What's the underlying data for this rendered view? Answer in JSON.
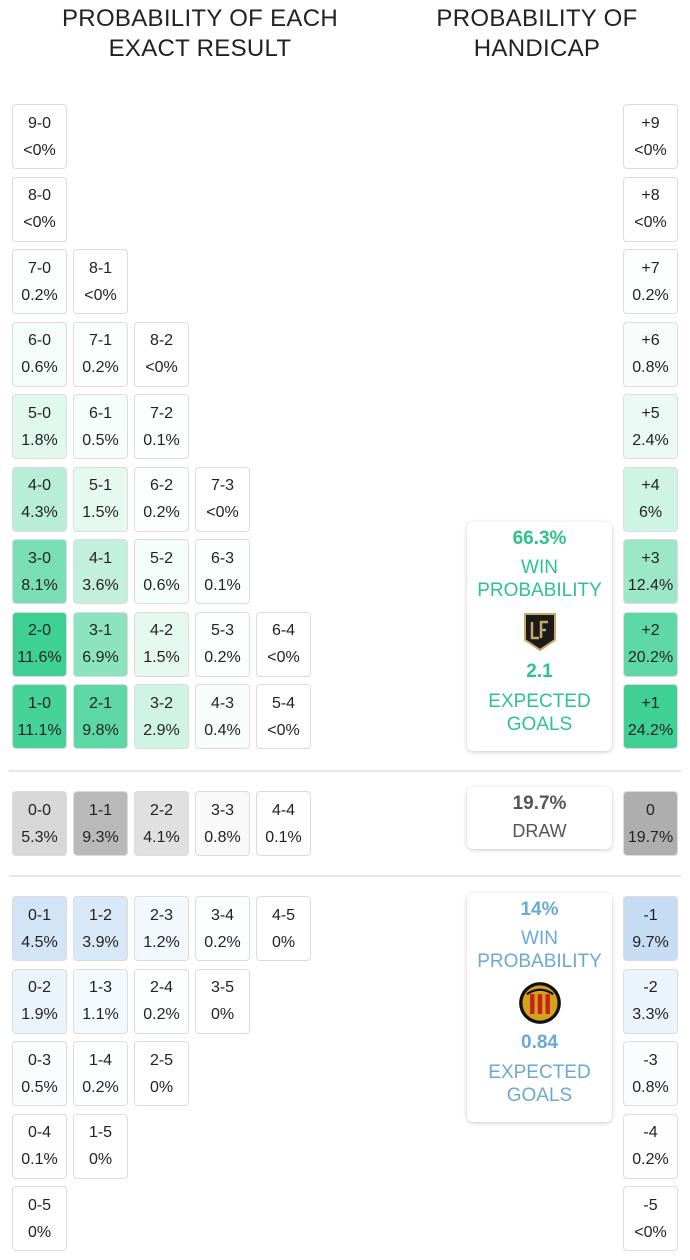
{
  "chart_data": [
    {
      "type": "table",
      "title": "PROBABILITY OF EACH EXACT RESULT",
      "home_wins": [
        [
          {
            "score": "9-0",
            "value": "<0%"
          }
        ],
        [
          {
            "score": "8-0",
            "value": "<0%"
          }
        ],
        [
          {
            "score": "7-0",
            "value": "0.2%"
          },
          {
            "score": "8-1",
            "value": "<0%"
          }
        ],
        [
          {
            "score": "6-0",
            "value": "0.6%"
          },
          {
            "score": "7-1",
            "value": "0.2%"
          },
          {
            "score": "8-2",
            "value": "<0%"
          }
        ],
        [
          {
            "score": "5-0",
            "value": "1.8%"
          },
          {
            "score": "6-1",
            "value": "0.5%"
          },
          {
            "score": "7-2",
            "value": "0.1%"
          }
        ],
        [
          {
            "score": "4-0",
            "value": "4.3%"
          },
          {
            "score": "5-1",
            "value": "1.5%"
          },
          {
            "score": "6-2",
            "value": "0.2%"
          },
          {
            "score": "7-3",
            "value": "<0%"
          }
        ],
        [
          {
            "score": "3-0",
            "value": "8.1%"
          },
          {
            "score": "4-1",
            "value": "3.6%"
          },
          {
            "score": "5-2",
            "value": "0.6%"
          },
          {
            "score": "6-3",
            "value": "0.1%"
          }
        ],
        [
          {
            "score": "2-0",
            "value": "11.6%"
          },
          {
            "score": "3-1",
            "value": "6.9%"
          },
          {
            "score": "4-2",
            "value": "1.5%"
          },
          {
            "score": "5-3",
            "value": "0.2%"
          },
          {
            "score": "6-4",
            "value": "<0%"
          }
        ],
        [
          {
            "score": "1-0",
            "value": "11.1%"
          },
          {
            "score": "2-1",
            "value": "9.8%"
          },
          {
            "score": "3-2",
            "value": "2.9%"
          },
          {
            "score": "4-3",
            "value": "0.4%"
          },
          {
            "score": "5-4",
            "value": "<0%"
          }
        ]
      ],
      "draws": [
        {
          "score": "0-0",
          "value": "5.3%"
        },
        {
          "score": "1-1",
          "value": "9.3%"
        },
        {
          "score": "2-2",
          "value": "4.1%"
        },
        {
          "score": "3-3",
          "value": "0.8%"
        },
        {
          "score": "4-4",
          "value": "0.1%"
        }
      ],
      "away_wins": [
        [
          {
            "score": "0-1",
            "value": "4.5%"
          },
          {
            "score": "1-2",
            "value": "3.9%"
          },
          {
            "score": "2-3",
            "value": "1.2%"
          },
          {
            "score": "3-4",
            "value": "0.2%"
          },
          {
            "score": "4-5",
            "value": "0%"
          }
        ],
        [
          {
            "score": "0-2",
            "value": "1.9%"
          },
          {
            "score": "1-3",
            "value": "1.1%"
          },
          {
            "score": "2-4",
            "value": "0.2%"
          },
          {
            "score": "3-5",
            "value": "0%"
          }
        ],
        [
          {
            "score": "0-3",
            "value": "0.5%"
          },
          {
            "score": "1-4",
            "value": "0.2%"
          },
          {
            "score": "2-5",
            "value": "0%"
          }
        ],
        [
          {
            "score": "0-4",
            "value": "0.1%"
          },
          {
            "score": "1-5",
            "value": "0%"
          }
        ],
        [
          {
            "score": "0-5",
            "value": "0%"
          }
        ]
      ]
    },
    {
      "type": "table",
      "title": "PROBABILITY OF HANDICAP",
      "home": [
        {
          "label": "+9",
          "value": "<0%"
        },
        {
          "label": "+8",
          "value": "<0%"
        },
        {
          "label": "+7",
          "value": "0.2%"
        },
        {
          "label": "+6",
          "value": "0.8%"
        },
        {
          "label": "+5",
          "value": "2.4%"
        },
        {
          "label": "+4",
          "value": "6%"
        },
        {
          "label": "+3",
          "value": "12.4%"
        },
        {
          "label": "+2",
          "value": "20.2%"
        },
        {
          "label": "+1",
          "value": "24.2%"
        }
      ],
      "draw": {
        "label": "0",
        "value": "19.7%"
      },
      "away": [
        {
          "label": "-1",
          "value": "9.7%"
        },
        {
          "label": "-2",
          "value": "3.3%"
        },
        {
          "label": "-3",
          "value": "0.8%"
        },
        {
          "label": "-4",
          "value": "0.2%"
        },
        {
          "label": "-5",
          "value": "<0%"
        }
      ]
    }
  ],
  "summary": {
    "home": {
      "win_pct": "66.3%",
      "win_label_1": "WIN",
      "win_label_2": "PROBABILITY",
      "xg": "2.1",
      "xg_label_1": "EXPECTED",
      "xg_label_2": "GOALS",
      "logo_icon": "lafc-crest-icon"
    },
    "draw": {
      "pct": "19.7%",
      "label": "DRAW"
    },
    "away": {
      "win_pct": "14%",
      "win_label_1": "WIN",
      "win_label_2": "PROBABILITY",
      "xg": "0.84",
      "xg_label_1": "EXPECTED",
      "xg_label_2": "GOALS",
      "logo_icon": "esperance-crest-icon"
    }
  },
  "colors": {
    "home_accent": "#2dc38d",
    "draw_accent": "#555555",
    "away_accent": "#6aa9d6",
    "home_rgb": [
      46,
      204,
      140
    ],
    "draw_rgb": [
      160,
      160,
      160
    ],
    "away_rgb": [
      130,
      180,
      230
    ]
  }
}
